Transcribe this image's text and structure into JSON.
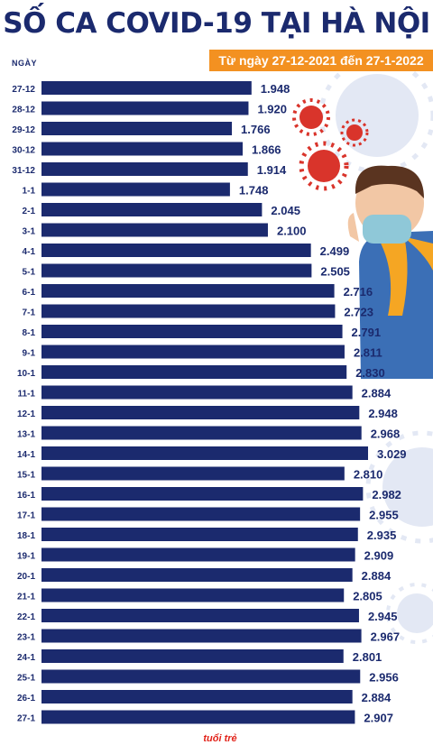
{
  "header": {
    "title": "SỐ CA COVID-19 TẠI HÀ NỘI",
    "subtitle": "Từ ngày 27-12-2021 đến 27-1-2022",
    "unit_label": "NGÀY"
  },
  "colors": {
    "title": "#1b2a6e",
    "bar": "#1b2a6e",
    "subtitle_bg": "#f39121",
    "virus_red": "#d9342b",
    "virus_light": "#e3e8f4"
  },
  "logo": {
    "text": "tuổi trẻ"
  },
  "chart_data": {
    "type": "bar",
    "orientation": "horizontal",
    "title": "SỐ CA COVID-19 TẠI HÀ NỘI",
    "categories": [
      "27-12",
      "28-12",
      "29-12",
      "30-12",
      "31-12",
      "1-1",
      "2-1",
      "3-1",
      "4-1",
      "5-1",
      "6-1",
      "7-1",
      "8-1",
      "9-1",
      "10-1",
      "11-1",
      "12-1",
      "13-1",
      "14-1",
      "15-1",
      "16-1",
      "17-1",
      "18-1",
      "19-1",
      "20-1",
      "21-1",
      "22-1",
      "23-1",
      "24-1",
      "25-1",
      "26-1",
      "27-1"
    ],
    "values": [
      1948,
      1920,
      1766,
      1866,
      1914,
      1748,
      2045,
      2100,
      2499,
      2505,
      2716,
      2723,
      2791,
      2811,
      2830,
      2884,
      2948,
      2968,
      3029,
      2810,
      2982,
      2955,
      2935,
      2909,
      2884,
      2805,
      2945,
      2967,
      2801,
      2956,
      2884,
      2907
    ],
    "value_labels": [
      "1.948",
      "1.920",
      "1.766",
      "1.866",
      "1.914",
      "1.748",
      "2.045",
      "2.100",
      "2.499",
      "2.505",
      "2.716",
      "2.723",
      "2.791",
      "2.811",
      "2.830",
      "2.884",
      "2.948",
      "2.968",
      "3.029",
      "2.810",
      "2.982",
      "2.955",
      "2.935",
      "2.909",
      "2.884",
      "2.805",
      "2.945",
      "2.967",
      "2.801",
      "2.956",
      "2.884",
      "2.907"
    ],
    "xlim": [
      0,
      3029
    ],
    "grid": false,
    "legend": "none"
  }
}
